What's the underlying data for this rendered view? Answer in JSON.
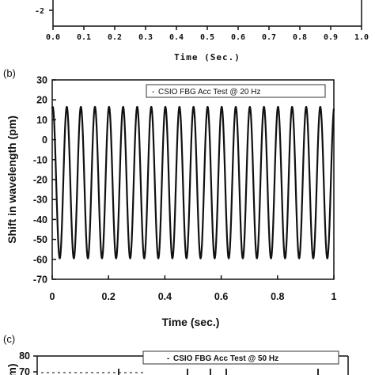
{
  "chart_data": [
    {
      "panel": "",
      "type": "line",
      "title": "",
      "xlabel": "Time (Sec.)",
      "ylabel": "",
      "xlim": [
        0.0,
        1.0
      ],
      "xticks": [
        "0.0",
        "0.1",
        "0.2",
        "0.3",
        "0.4",
        "0.5",
        "0.6",
        "0.7",
        "0.8",
        "0.9",
        "1.0"
      ],
      "yticks": [
        "-2"
      ],
      "series": []
    },
    {
      "panel": "(b)",
      "type": "line",
      "title": "",
      "xlabel": "Time (sec.)",
      "ylabel": "Shift in wavelength (pm)",
      "xlim": [
        0,
        1
      ],
      "ylim": [
        -70,
        30
      ],
      "xticks": [
        "0",
        "0.2",
        "0.4",
        "0.6",
        "0.8",
        "1"
      ],
      "yticks": [
        "30",
        "20",
        "10",
        "0",
        "-10",
        "-20",
        "-30",
        "-40",
        "-50",
        "-60",
        "-70"
      ],
      "legend_position": "top-right",
      "series": [
        {
          "name": "CSIO FBG Acc Test @ 20 Hz",
          "function": "sine",
          "frequency_hz": 20,
          "offset_pm": -21.5,
          "amplitude_pm": 38,
          "phase_rad": 1.35,
          "x_start": 0,
          "x_end": 1
        }
      ]
    },
    {
      "panel": "(c)",
      "type": "line",
      "title": "",
      "xlabel": "",
      "ylabel": "",
      "ylim": [
        70,
        80
      ],
      "yticks": [
        "80",
        "70"
      ],
      "legend_position": "top-right",
      "series": [
        {
          "name": "CSIO FBG Acc Test @ 50 Hz"
        }
      ]
    }
  ],
  "ylabel_c_fragment": "m)",
  "legend_prefix": "-",
  "colors": {
    "line": "#111111",
    "axis": "#111111",
    "background": "#ffffff"
  }
}
